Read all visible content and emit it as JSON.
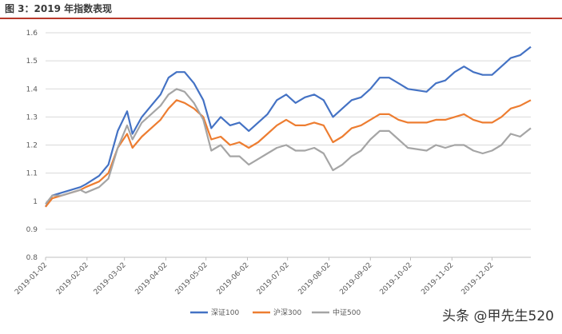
{
  "title": "图 3：2019 年指数表现",
  "watermark": "头条 @甲先生520",
  "chart_data": {
    "type": "line",
    "xlabel": "",
    "ylabel": "",
    "ylim": [
      0.8,
      1.6
    ],
    "yticks": [
      "0.8",
      "0.9",
      "1",
      "1.1",
      "1.2",
      "1.3",
      "1.4",
      "1.5",
      "1.6"
    ],
    "xticks": [
      "2019-01-02",
      "2019-02-02",
      "2019-03-02",
      "2019-04-02",
      "2019-05-02",
      "2019-06-02",
      "2019-07-02",
      "2019-08-02",
      "2019-09-02",
      "2019-10-02",
      "2019-11-02",
      "2019-12-02"
    ],
    "grid": "horizontal",
    "legend_position": "bottom",
    "series": [
      {
        "name": "深证100",
        "color": "#4472c4",
        "points": [
          [
            "2019-01-02",
            0.98
          ],
          [
            "2019-01-07",
            1.02
          ],
          [
            "2019-01-14",
            1.03
          ],
          [
            "2019-01-21",
            1.04
          ],
          [
            "2019-01-28",
            1.05
          ],
          [
            "2019-02-01",
            1.06
          ],
          [
            "2019-02-11",
            1.09
          ],
          [
            "2019-02-18",
            1.13
          ],
          [
            "2019-02-25",
            1.25
          ],
          [
            "2019-03-04",
            1.32
          ],
          [
            "2019-03-08",
            1.24
          ],
          [
            "2019-03-15",
            1.3
          ],
          [
            "2019-03-22",
            1.34
          ],
          [
            "2019-03-29",
            1.38
          ],
          [
            "2019-04-04",
            1.44
          ],
          [
            "2019-04-10",
            1.46
          ],
          [
            "2019-04-16",
            1.46
          ],
          [
            "2019-04-23",
            1.42
          ],
          [
            "2019-04-30",
            1.36
          ],
          [
            "2019-05-06",
            1.26
          ],
          [
            "2019-05-13",
            1.3
          ],
          [
            "2019-05-20",
            1.27
          ],
          [
            "2019-05-27",
            1.28
          ],
          [
            "2019-06-03",
            1.25
          ],
          [
            "2019-06-10",
            1.28
          ],
          [
            "2019-06-17",
            1.31
          ],
          [
            "2019-06-24",
            1.36
          ],
          [
            "2019-07-01",
            1.38
          ],
          [
            "2019-07-08",
            1.35
          ],
          [
            "2019-07-15",
            1.37
          ],
          [
            "2019-07-22",
            1.38
          ],
          [
            "2019-07-29",
            1.36
          ],
          [
            "2019-08-05",
            1.3
          ],
          [
            "2019-08-12",
            1.33
          ],
          [
            "2019-08-19",
            1.36
          ],
          [
            "2019-08-26",
            1.37
          ],
          [
            "2019-09-02",
            1.4
          ],
          [
            "2019-09-09",
            1.44
          ],
          [
            "2019-09-16",
            1.44
          ],
          [
            "2019-09-23",
            1.42
          ],
          [
            "2019-09-30",
            1.4
          ],
          [
            "2019-10-14",
            1.39
          ],
          [
            "2019-10-21",
            1.42
          ],
          [
            "2019-10-28",
            1.43
          ],
          [
            "2019-11-04",
            1.46
          ],
          [
            "2019-11-11",
            1.48
          ],
          [
            "2019-11-18",
            1.46
          ],
          [
            "2019-11-25",
            1.45
          ],
          [
            "2019-12-02",
            1.45
          ],
          [
            "2019-12-09",
            1.48
          ],
          [
            "2019-12-16",
            1.51
          ],
          [
            "2019-12-23",
            1.52
          ],
          [
            "2019-12-31",
            1.55
          ]
        ]
      },
      {
        "name": "沪深300",
        "color": "#ed7d31",
        "points": [
          [
            "2019-01-02",
            0.98
          ],
          [
            "2019-01-07",
            1.01
          ],
          [
            "2019-01-14",
            1.02
          ],
          [
            "2019-01-21",
            1.03
          ],
          [
            "2019-01-28",
            1.04
          ],
          [
            "2019-02-01",
            1.05
          ],
          [
            "2019-02-11",
            1.07
          ],
          [
            "2019-02-18",
            1.1
          ],
          [
            "2019-02-25",
            1.19
          ],
          [
            "2019-03-04",
            1.24
          ],
          [
            "2019-03-08",
            1.19
          ],
          [
            "2019-03-15",
            1.23
          ],
          [
            "2019-03-22",
            1.26
          ],
          [
            "2019-03-29",
            1.29
          ],
          [
            "2019-04-04",
            1.33
          ],
          [
            "2019-04-10",
            1.36
          ],
          [
            "2019-04-16",
            1.35
          ],
          [
            "2019-04-23",
            1.33
          ],
          [
            "2019-04-30",
            1.3
          ],
          [
            "2019-05-06",
            1.22
          ],
          [
            "2019-05-13",
            1.23
          ],
          [
            "2019-05-20",
            1.2
          ],
          [
            "2019-05-27",
            1.21
          ],
          [
            "2019-06-03",
            1.19
          ],
          [
            "2019-06-10",
            1.21
          ],
          [
            "2019-06-17",
            1.24
          ],
          [
            "2019-06-24",
            1.27
          ],
          [
            "2019-07-01",
            1.29
          ],
          [
            "2019-07-08",
            1.27
          ],
          [
            "2019-07-15",
            1.27
          ],
          [
            "2019-07-22",
            1.28
          ],
          [
            "2019-07-29",
            1.27
          ],
          [
            "2019-08-05",
            1.21
          ],
          [
            "2019-08-12",
            1.23
          ],
          [
            "2019-08-19",
            1.26
          ],
          [
            "2019-08-26",
            1.27
          ],
          [
            "2019-09-02",
            1.29
          ],
          [
            "2019-09-09",
            1.31
          ],
          [
            "2019-09-16",
            1.31
          ],
          [
            "2019-09-23",
            1.29
          ],
          [
            "2019-09-30",
            1.28
          ],
          [
            "2019-10-14",
            1.28
          ],
          [
            "2019-10-21",
            1.29
          ],
          [
            "2019-10-28",
            1.29
          ],
          [
            "2019-11-04",
            1.3
          ],
          [
            "2019-11-11",
            1.31
          ],
          [
            "2019-11-18",
            1.29
          ],
          [
            "2019-11-25",
            1.28
          ],
          [
            "2019-12-02",
            1.28
          ],
          [
            "2019-12-09",
            1.3
          ],
          [
            "2019-12-16",
            1.33
          ],
          [
            "2019-12-23",
            1.34
          ],
          [
            "2019-12-31",
            1.36
          ]
        ]
      },
      {
        "name": "中证500",
        "color": "#a5a5a5",
        "points": [
          [
            "2019-01-02",
            0.99
          ],
          [
            "2019-01-07",
            1.02
          ],
          [
            "2019-01-14",
            1.02
          ],
          [
            "2019-01-21",
            1.03
          ],
          [
            "2019-01-28",
            1.04
          ],
          [
            "2019-02-01",
            1.03
          ],
          [
            "2019-02-11",
            1.05
          ],
          [
            "2019-02-18",
            1.08
          ],
          [
            "2019-02-25",
            1.19
          ],
          [
            "2019-03-04",
            1.27
          ],
          [
            "2019-03-08",
            1.22
          ],
          [
            "2019-03-15",
            1.28
          ],
          [
            "2019-03-22",
            1.31
          ],
          [
            "2019-03-29",
            1.34
          ],
          [
            "2019-04-04",
            1.38
          ],
          [
            "2019-04-10",
            1.4
          ],
          [
            "2019-04-16",
            1.39
          ],
          [
            "2019-04-23",
            1.35
          ],
          [
            "2019-04-30",
            1.29
          ],
          [
            "2019-05-06",
            1.18
          ],
          [
            "2019-05-13",
            1.2
          ],
          [
            "2019-05-20",
            1.16
          ],
          [
            "2019-05-27",
            1.16
          ],
          [
            "2019-06-03",
            1.13
          ],
          [
            "2019-06-10",
            1.15
          ],
          [
            "2019-06-17",
            1.17
          ],
          [
            "2019-06-24",
            1.19
          ],
          [
            "2019-07-01",
            1.2
          ],
          [
            "2019-07-08",
            1.18
          ],
          [
            "2019-07-15",
            1.18
          ],
          [
            "2019-07-22",
            1.19
          ],
          [
            "2019-07-29",
            1.17
          ],
          [
            "2019-08-05",
            1.11
          ],
          [
            "2019-08-12",
            1.13
          ],
          [
            "2019-08-19",
            1.16
          ],
          [
            "2019-08-26",
            1.18
          ],
          [
            "2019-09-02",
            1.22
          ],
          [
            "2019-09-09",
            1.25
          ],
          [
            "2019-09-16",
            1.25
          ],
          [
            "2019-09-23",
            1.22
          ],
          [
            "2019-09-30",
            1.19
          ],
          [
            "2019-10-14",
            1.18
          ],
          [
            "2019-10-21",
            1.2
          ],
          [
            "2019-10-28",
            1.19
          ],
          [
            "2019-11-04",
            1.2
          ],
          [
            "2019-11-11",
            1.2
          ],
          [
            "2019-11-18",
            1.18
          ],
          [
            "2019-11-25",
            1.17
          ],
          [
            "2019-12-02",
            1.18
          ],
          [
            "2019-12-09",
            1.2
          ],
          [
            "2019-12-16",
            1.24
          ],
          [
            "2019-12-23",
            1.23
          ],
          [
            "2019-12-31",
            1.26
          ]
        ]
      }
    ]
  }
}
